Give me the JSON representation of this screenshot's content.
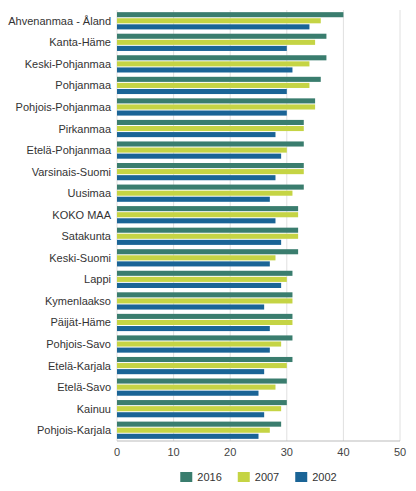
{
  "chart_data": {
    "type": "bar",
    "orientation": "horizontal",
    "categories": [
      "Ahvenanmaa - Åland",
      "Kanta-Häme",
      "Keski-Pohjanmaa",
      "Pohjanmaa",
      "Pohjois-Pohjanmaa",
      "Pirkanmaa",
      "Etelä-Pohjanmaa",
      "Varsinais-Suomi",
      "Uusimaa",
      "KOKO MAA",
      "Satakunta",
      "Keski-Suomi",
      "Lappi",
      "Kymenlaakso",
      "Päijät-Häme",
      "Pohjois-Savo",
      "Etelä-Karjala",
      "Etelä-Savo",
      "Kainuu",
      "Pohjois-Karjala"
    ],
    "series": [
      {
        "name": "2016",
        "color": "#3a7d6e",
        "values": [
          40,
          37,
          37,
          36,
          35,
          33,
          33,
          33,
          33,
          32,
          32,
          32,
          31,
          31,
          31,
          31,
          31,
          30,
          30,
          29
        ]
      },
      {
        "name": "2007",
        "color": "#c5d444",
        "values": [
          36,
          35,
          34,
          34,
          35,
          33,
          30,
          33,
          31,
          32,
          32,
          28,
          30,
          31,
          31,
          29,
          30,
          28,
          29,
          27
        ]
      },
      {
        "name": "2002",
        "color": "#1a6496",
        "values": [
          34,
          30,
          31,
          30,
          30,
          28,
          29,
          28,
          27,
          28,
          29,
          27,
          29,
          26,
          27,
          27,
          26,
          25,
          26,
          25
        ]
      }
    ],
    "xlim": [
      0,
      50
    ],
    "xticks": [
      0,
      10,
      20,
      30,
      40,
      50
    ],
    "grid": true,
    "legend": "bottom"
  }
}
